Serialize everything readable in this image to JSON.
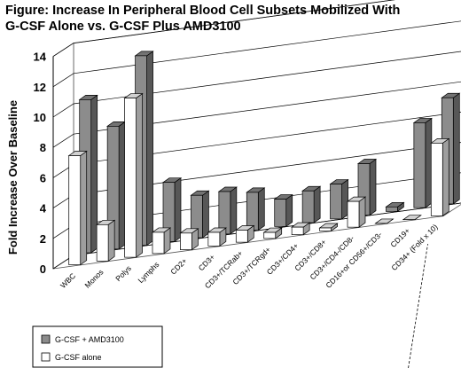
{
  "chart_data": {
    "type": "bar",
    "title": "Figure: Increase In Peripheral Blood Cell Subsets Mobilized With\nG-CSF Alone vs. G-CSF Plus AMD3100",
    "ylabel": "Fold Increase Over Baseline",
    "xlabel": "",
    "ylim": [
      0,
      14
    ],
    "yticks": [
      0,
      2,
      4,
      6,
      8,
      10,
      12,
      14
    ],
    "grid": true,
    "style": "3d-bars",
    "legend_position": "bottom-left",
    "categories": [
      "WBC",
      "Monos",
      "Polys",
      "Lymphs",
      "CD2+",
      "CD3+",
      "CD3+/TCRab+",
      "CD3+/TCRgd+",
      "CD3+/CD4+",
      "CD3+/CD8+",
      "CD3+/CD4-/CD8-",
      "CD16+or CD56+/CD3-",
      "CD19+",
      "CD34+ (Fold x 10)"
    ],
    "series": [
      {
        "name": "G-CSF + AMD3100",
        "color": "#8c8c8c",
        "values": [
          10.1,
          8.1,
          12.5,
          3.9,
          2.8,
          2.8,
          2.5,
          1.8,
          2.1,
          2.3,
          3.4,
          0.3,
          5.6,
          7.0
        ]
      },
      {
        "name": "G-CSF alone",
        "color": "#ffffff",
        "values": [
          7.2,
          2.4,
          10.5,
          1.4,
          1.1,
          0.9,
          0.8,
          0.4,
          0.5,
          0.2,
          1.7,
          0.0,
          0.0,
          4.8
        ]
      }
    ]
  }
}
